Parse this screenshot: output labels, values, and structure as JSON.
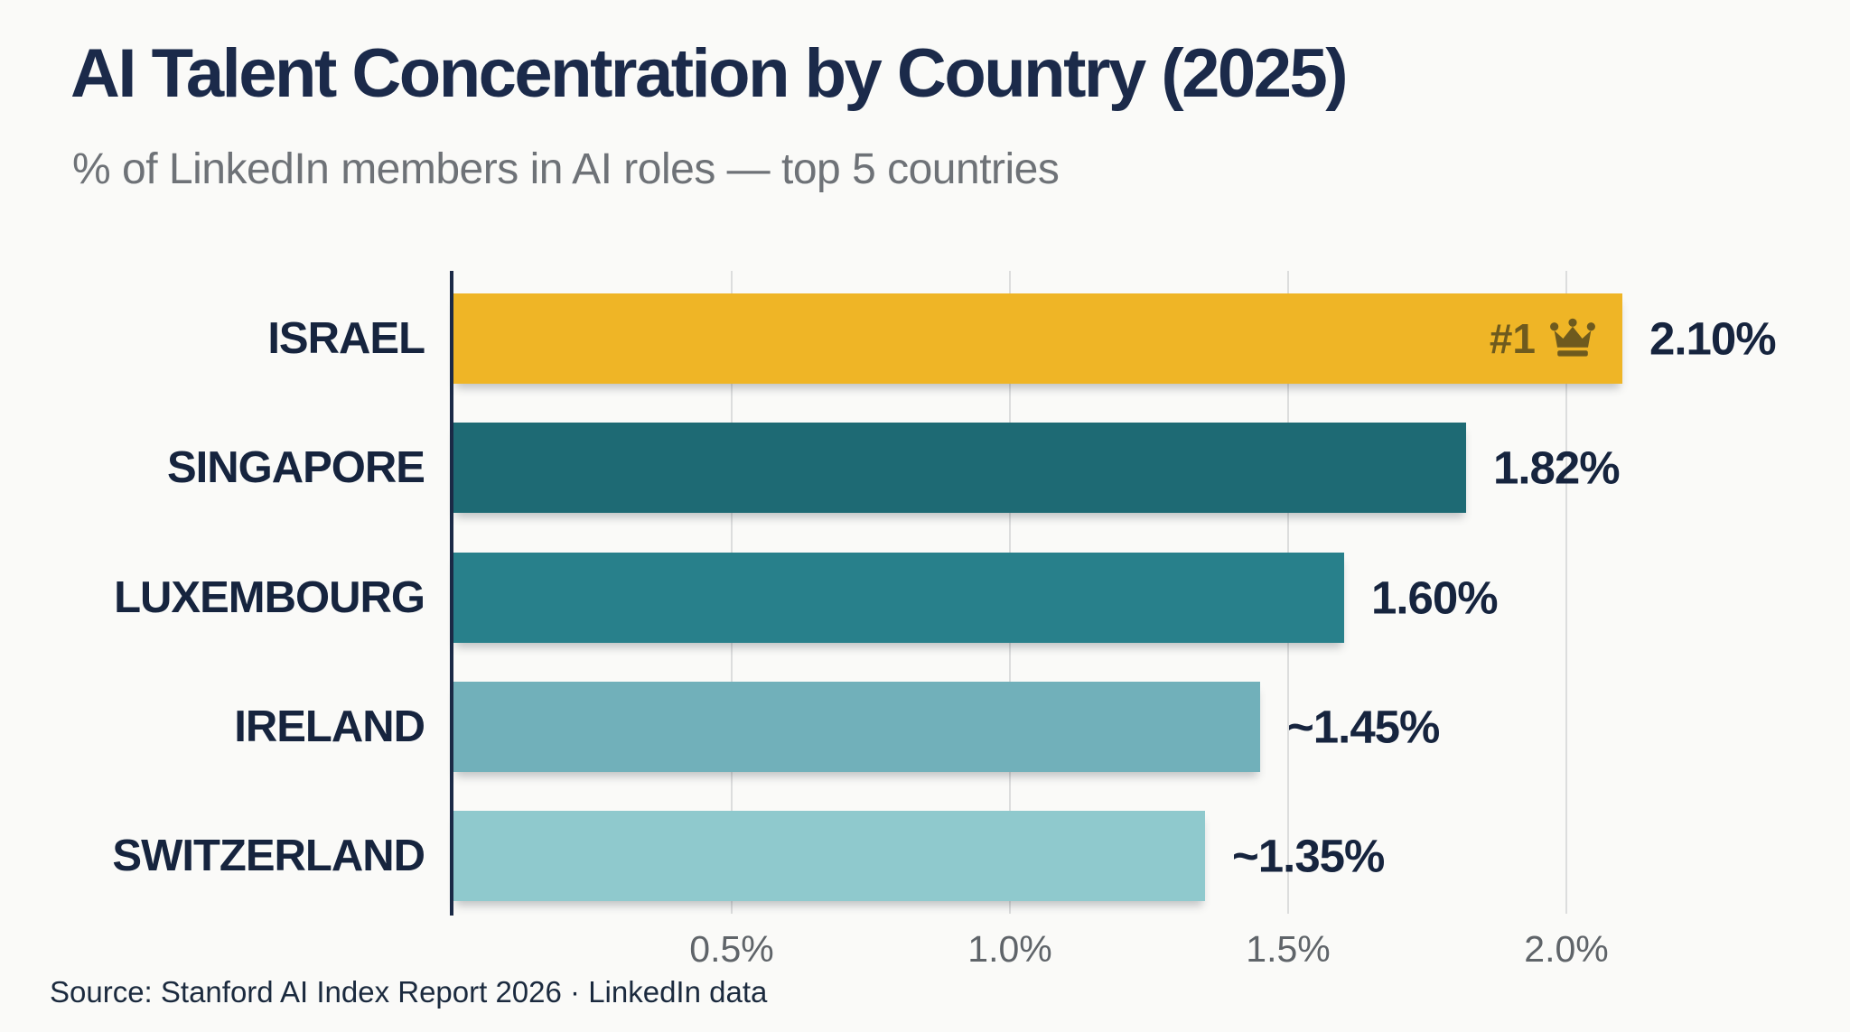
{
  "header": {
    "title": "AI Talent Concentration by Country (2025)",
    "subtitle": "% of LinkedIn members in AI roles — top 5 countries"
  },
  "chart_data": {
    "type": "bar",
    "orientation": "horizontal",
    "title": "AI Talent Concentration by Country (2025)",
    "subtitle": "% of LinkedIn members in AI roles — top 5 countries",
    "categories": [
      "ISRAEL",
      "SINGAPORE",
      "LUXEMBOURG",
      "IRELAND",
      "SWITZERLAND"
    ],
    "values": [
      2.1,
      1.82,
      1.6,
      1.45,
      1.35
    ],
    "value_labels": [
      "2.10%",
      "1.82%",
      "1.60%",
      "~1.45%",
      "~1.35%"
    ],
    "bar_colors": [
      "#EFB526",
      "#1E6A74",
      "#28808B",
      "#71B0BA",
      "#8FC9CD"
    ],
    "xlim": [
      0,
      2.21
    ],
    "x_ticks": [
      0.5,
      1.0,
      1.5,
      2.0
    ],
    "x_tick_labels": [
      "0.5%",
      "1.0%",
      "1.5%",
      "2.0%"
    ],
    "grid": true,
    "legend": false,
    "annotations": [
      {
        "target": "ISRAEL",
        "label": "#1",
        "icon": "crown-icon",
        "color": "#6E5A1E"
      }
    ]
  },
  "footer": {
    "source": "Source: Stanford AI Index Report 2026 · LinkedIn data"
  },
  "colors": {
    "background": "#FAFAF8",
    "title_text": "#1B2A4A",
    "subtitle_text": "#6E7277",
    "label_text": "#16243E",
    "tick_text": "#5F6469",
    "axis_line": "#1B2A47",
    "gridline": "#DCDDDD",
    "rank_badge_text": "#6E5A1E"
  }
}
